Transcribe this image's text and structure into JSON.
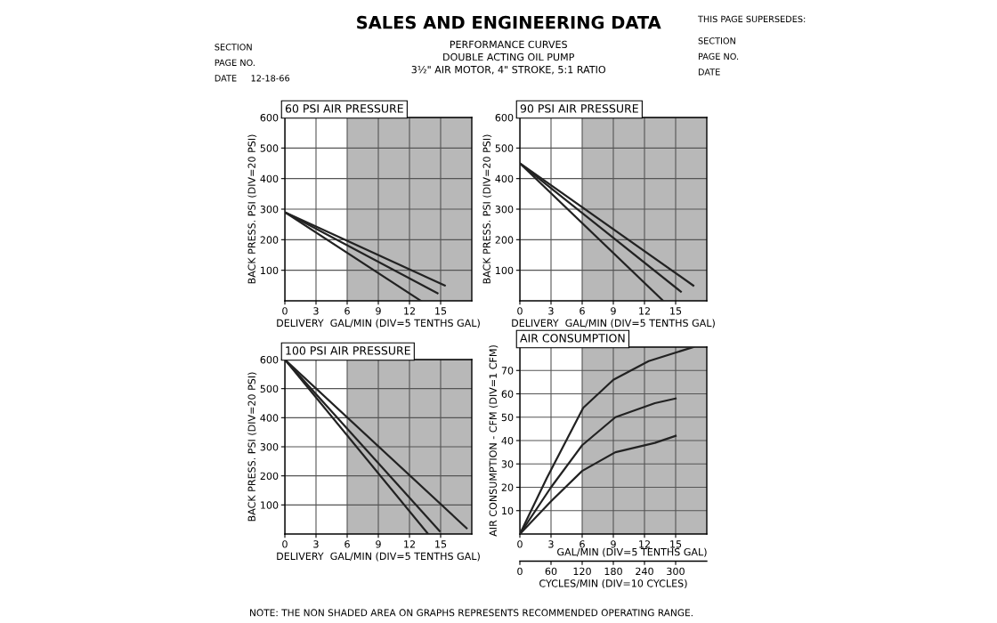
{
  "chart_data": [
    {
      "type": "other",
      "title": "SALES AND ENGINEERING DATA",
      "subtitle": "PERFORMANCE CURVES\nDOUBLE ACTING OIL PUMP\n3½\" AIR MOTOR, 4\" STROKE, 5:1 RATIO",
      "annotations": [
        "SECTION",
        "PAGE NO.",
        "DATE     12-18-66",
        "THIS PAGE SUPERSEDES:",
        "SECTION",
        "PAGE NO.",
        "DATE",
        "NOTE: THE NON SHADED AREA ON GRAPHS REPRESENTS RECOMMENDED OPERATING RANGE."
      ]
    },
    {
      "type": "line",
      "title": "60 PSI AIR PRESSURE",
      "xlabel": "DELIVERY  GAL/MIN (DIV=5 TENTHS GAL)",
      "ylabel": "BACK PRESS. PSI (DIV=20 PSI)",
      "xlim": [
        0,
        18
      ],
      "xticks": [
        0,
        3,
        6,
        9,
        12,
        15
      ],
      "ylim": [
        0,
        600
      ],
      "yticks": [
        100,
        200,
        300,
        400,
        500,
        600
      ],
      "grid": true,
      "line_style": "solid",
      "marker": "none",
      "bands": [
        {
          "axis": "x",
          "from": 6,
          "to": 18,
          "color": "#b8b8b8"
        }
      ],
      "series": [
        {
          "color": "#222222",
          "x": [
            0,
            13.1
          ],
          "values": [
            290,
            0
          ]
        },
        {
          "color": "#222222",
          "x": [
            0,
            14.7
          ],
          "values": [
            290,
            25
          ]
        },
        {
          "color": "#222222",
          "x": [
            0,
            15.4
          ],
          "values": [
            290,
            50
          ]
        }
      ]
    },
    {
      "type": "line",
      "title": "90 PSI AIR PRESSURE",
      "xlabel": "DELIVERY  GAL/MIN (DIV=5 TENTHS GAL)",
      "ylabel": "BACK PRESS. PSI (DIV=20 PSI)",
      "xlim": [
        0,
        18
      ],
      "xticks": [
        0,
        3,
        6,
        9,
        12,
        15
      ],
      "ylim": [
        0,
        600
      ],
      "yticks": [
        100,
        200,
        300,
        400,
        500,
        600
      ],
      "grid": true,
      "line_style": "solid",
      "marker": "none",
      "bands": [
        {
          "axis": "x",
          "from": 6,
          "to": 18,
          "color": "#b8b8b8"
        }
      ],
      "series": [
        {
          "color": "#222222",
          "x": [
            0,
            13.8
          ],
          "values": [
            450,
            0
          ]
        },
        {
          "color": "#222222",
          "x": [
            0,
            15.5
          ],
          "values": [
            450,
            30
          ]
        },
        {
          "color": "#222222",
          "x": [
            0,
            16.7
          ],
          "values": [
            450,
            50
          ]
        }
      ]
    },
    {
      "type": "line",
      "title": "100 PSI AIR PRESSURE",
      "xlabel": "DELIVERY  GAL/MIN (DIV=5 TENTHS GAL)",
      "ylabel": "BACK PRESS. PSI (DIV=20 PSI)",
      "xlim": [
        0,
        18
      ],
      "xticks": [
        0,
        3,
        6,
        9,
        12,
        15
      ],
      "ylim": [
        0,
        600
      ],
      "yticks": [
        100,
        200,
        300,
        400,
        500,
        600
      ],
      "grid": true,
      "line_style": "solid",
      "marker": "none",
      "bands": [
        {
          "axis": "x",
          "from": 6,
          "to": 18,
          "color": "#b8b8b8"
        }
      ],
      "series": [
        {
          "color": "#222222",
          "x": [
            0,
            13.8
          ],
          "values": [
            600,
            0
          ]
        },
        {
          "color": "#222222",
          "x": [
            0,
            14.9
          ],
          "values": [
            600,
            10
          ]
        },
        {
          "color": "#222222",
          "x": [
            0,
            17.5
          ],
          "values": [
            600,
            20
          ]
        }
      ]
    },
    {
      "type": "line",
      "title": "AIR CONSUMPTION",
      "xlabel": "GAL/MIN (DIV=5 TENTHS GAL)",
      "x2label": "CYCLES/MIN (DIV=10 CYCLES)",
      "ylabel": "AIR CONSUMPTION - CFM (DIV=1 CFM)",
      "xlim": [
        0,
        18
      ],
      "xticks": [
        0,
        3,
        6,
        9,
        12,
        15
      ],
      "x2lim": [
        0,
        360
      ],
      "x2ticks": [
        0,
        60,
        120,
        180,
        240,
        300
      ],
      "ylim": [
        0,
        80
      ],
      "yticks": [
        10,
        20,
        30,
        40,
        50,
        60,
        70
      ],
      "grid": true,
      "line_style": "solid",
      "marker": "none",
      "bands": [
        {
          "axis": "x",
          "from": 6,
          "to": 18,
          "color": "#b8b8b8"
        }
      ],
      "series": [
        {
          "color": "#222222",
          "x": [
            0,
            2.6,
            6.1,
            9,
            12.4,
            16.7
          ],
          "values": [
            0,
            24,
            54,
            66,
            74,
            80
          ]
        },
        {
          "color": "#222222",
          "x": [
            0,
            3,
            6,
            9.2,
            13,
            15
          ],
          "values": [
            0,
            20,
            38,
            50,
            56,
            58
          ]
        },
        {
          "color": "#222222",
          "x": [
            0,
            3,
            6,
            9.2,
            13,
            15
          ],
          "values": [
            0,
            14,
            27,
            35,
            39,
            42
          ]
        }
      ]
    }
  ]
}
